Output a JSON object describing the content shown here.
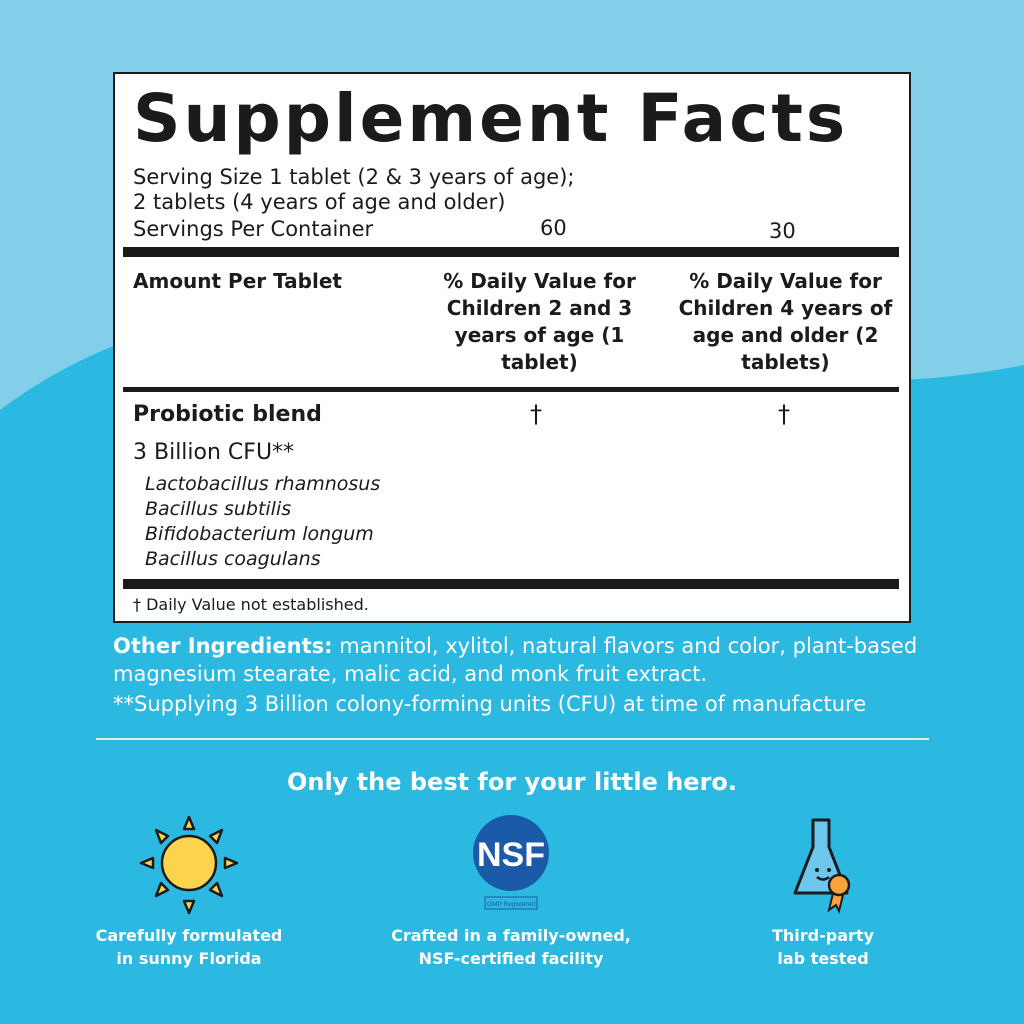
{
  "colors": {
    "sky": "#83cfea",
    "background": "#2bb9e2",
    "label_bg": "#ffffff",
    "text": "#1b1b1b"
  },
  "facts": {
    "title": "Supplement Facts",
    "serving_line1": "Serving Size 1 tablet (2 & 3 years of age);",
    "serving_line2": "2 tablets (4 years of age and older)",
    "servings_label": "Servings Per Container",
    "servings_col1": "60",
    "servings_col2": "30",
    "header_amount": "Amount Per Tablet",
    "header_col1": "% Daily Value for Children 2 and 3 years of age (1 tablet)",
    "header_col2": "% Daily Value for Children 4 years of age and older (2 tablets)",
    "ingredient": "Probiotic blend",
    "dv_col1": "†",
    "dv_col2": "†",
    "amount": "3 Billion CFU**",
    "strains": [
      "Lactobacillus rhamnosus",
      "Bacillus subtilis",
      "Bifidobacterium longum",
      "Bacillus coagulans"
    ],
    "footnote": "† Daily Value not established."
  },
  "other_ingredients": {
    "label": "Other Ingredients:",
    "text": " mannitol, xylitol, natural flavors and color, plant-based magnesium stearate, malic acid, and monk fruit extract."
  },
  "cfu_note": "**Supplying 3 Billion colony-forming units (CFU) at time of manufacture",
  "tagline": "Only the best for your little hero.",
  "features": [
    {
      "icon": "sun-icon",
      "caption": "Carefully formulated\nin sunny Florida"
    },
    {
      "icon": "nsf-logo",
      "logo_text": "NSF",
      "badge": "GMP Registered",
      "caption": "Crafted in a family-owned,\nNSF-certified facility"
    },
    {
      "icon": "flask-icon",
      "caption": "Third-party\nlab tested"
    }
  ]
}
